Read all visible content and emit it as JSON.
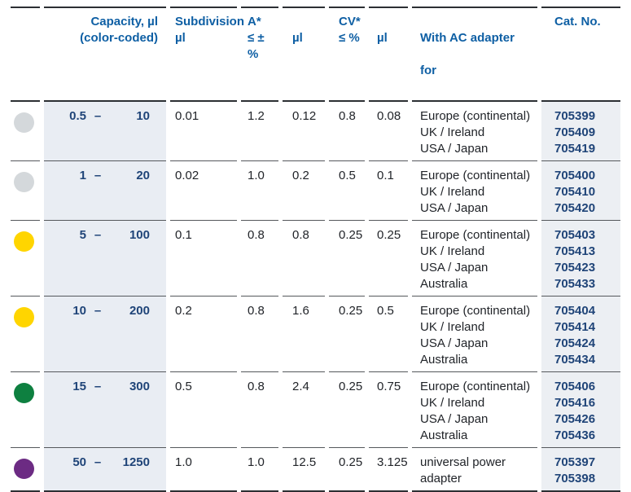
{
  "colors": {
    "header_blue": "#0e5fa4",
    "navy_value": "#1f4478",
    "body_text": "#212429",
    "capacity_band": "#e9edf3",
    "cat_band": "#eceff3",
    "dot_gray": "#d4d8db",
    "dot_yellow": "#ffd500",
    "dot_green": "#0e8040",
    "dot_purple": "#6c2b83"
  },
  "table": {
    "header": {
      "capacity_line1": "Capacity, µl",
      "capacity_line2": "(color-coded)",
      "subdivision_line1": "Subdivision",
      "subdivision_line2": "µl",
      "a_line1": "A*",
      "a_line2": "≤ ± %",
      "a_ul": "µl",
      "cv_line1": "CV*",
      "cv_line2": "≤ %",
      "cv_ul": "µl",
      "adapter_line1": "With AC adapter",
      "adapter_line2": "for",
      "cat": "Cat. No."
    },
    "rows": [
      {
        "dot_name": "gray",
        "dot_color": "#d4d8db",
        "cap_min": "0.5",
        "dash": "–",
        "cap_max": "10",
        "subdivision": "0.01",
        "a_pct": "1.2",
        "a_ul": "0.12",
        "cv_pct": "0.8",
        "cv_ul": "0.08",
        "adapters": [
          "Europe (continental)",
          "UK / Ireland",
          "USA / Japan"
        ],
        "cat_nos": [
          "705399",
          "705409",
          "705419"
        ]
      },
      {
        "dot_name": "gray",
        "dot_color": "#d4d8db",
        "cap_min": "1",
        "dash": "–",
        "cap_max": "20",
        "subdivision": "0.02",
        "a_pct": "1.0",
        "a_ul": "0.2",
        "cv_pct": "0.5",
        "cv_ul": "0.1",
        "adapters": [
          "Europe (continental)",
          "UK / Ireland",
          "USA / Japan"
        ],
        "cat_nos": [
          "705400",
          "705410",
          "705420"
        ]
      },
      {
        "dot_name": "yellow",
        "dot_color": "#ffd500",
        "cap_min": "5",
        "dash": "–",
        "cap_max": "100",
        "subdivision": "0.1",
        "a_pct": "0.8",
        "a_ul": "0.8",
        "cv_pct": "0.25",
        "cv_ul": "0.25",
        "adapters": [
          "Europe (continental)",
          "UK / Ireland",
          "USA / Japan",
          "Australia"
        ],
        "cat_nos": [
          "705403",
          "705413",
          "705423",
          "705433"
        ]
      },
      {
        "dot_name": "yellow",
        "dot_color": "#ffd500",
        "cap_min": "10",
        "dash": "–",
        "cap_max": "200",
        "subdivision": "0.2",
        "a_pct": "0.8",
        "a_ul": "1.6",
        "cv_pct": "0.25",
        "cv_ul": "0.5",
        "adapters": [
          "Europe (continental)",
          "UK / Ireland",
          "USA / Japan",
          "Australia"
        ],
        "cat_nos": [
          "705404",
          "705414",
          "705424",
          "705434"
        ]
      },
      {
        "dot_name": "green",
        "dot_color": "#0e8040",
        "cap_min": "15",
        "dash": "–",
        "cap_max": "300",
        "subdivision": "0.5",
        "a_pct": "0.8",
        "a_ul": "2.4",
        "cv_pct": "0.25",
        "cv_ul": "0.75",
        "adapters": [
          "Europe (continental)",
          "UK / Ireland",
          "USA / Japan",
          "Australia"
        ],
        "cat_nos": [
          "705406",
          "705416",
          "705426",
          "705436"
        ]
      },
      {
        "dot_name": "purple",
        "dot_color": "#6c2b83",
        "cap_min": "50",
        "dash": "–",
        "cap_max": "1250",
        "subdivision": "1.0",
        "a_pct": "1.0",
        "a_ul": "12.5",
        "cv_pct": "0.25",
        "cv_ul": "3.125",
        "adapters": [
          "universal power adapter"
        ],
        "cat_nos": [
          "705397",
          "705398"
        ]
      }
    ]
  }
}
